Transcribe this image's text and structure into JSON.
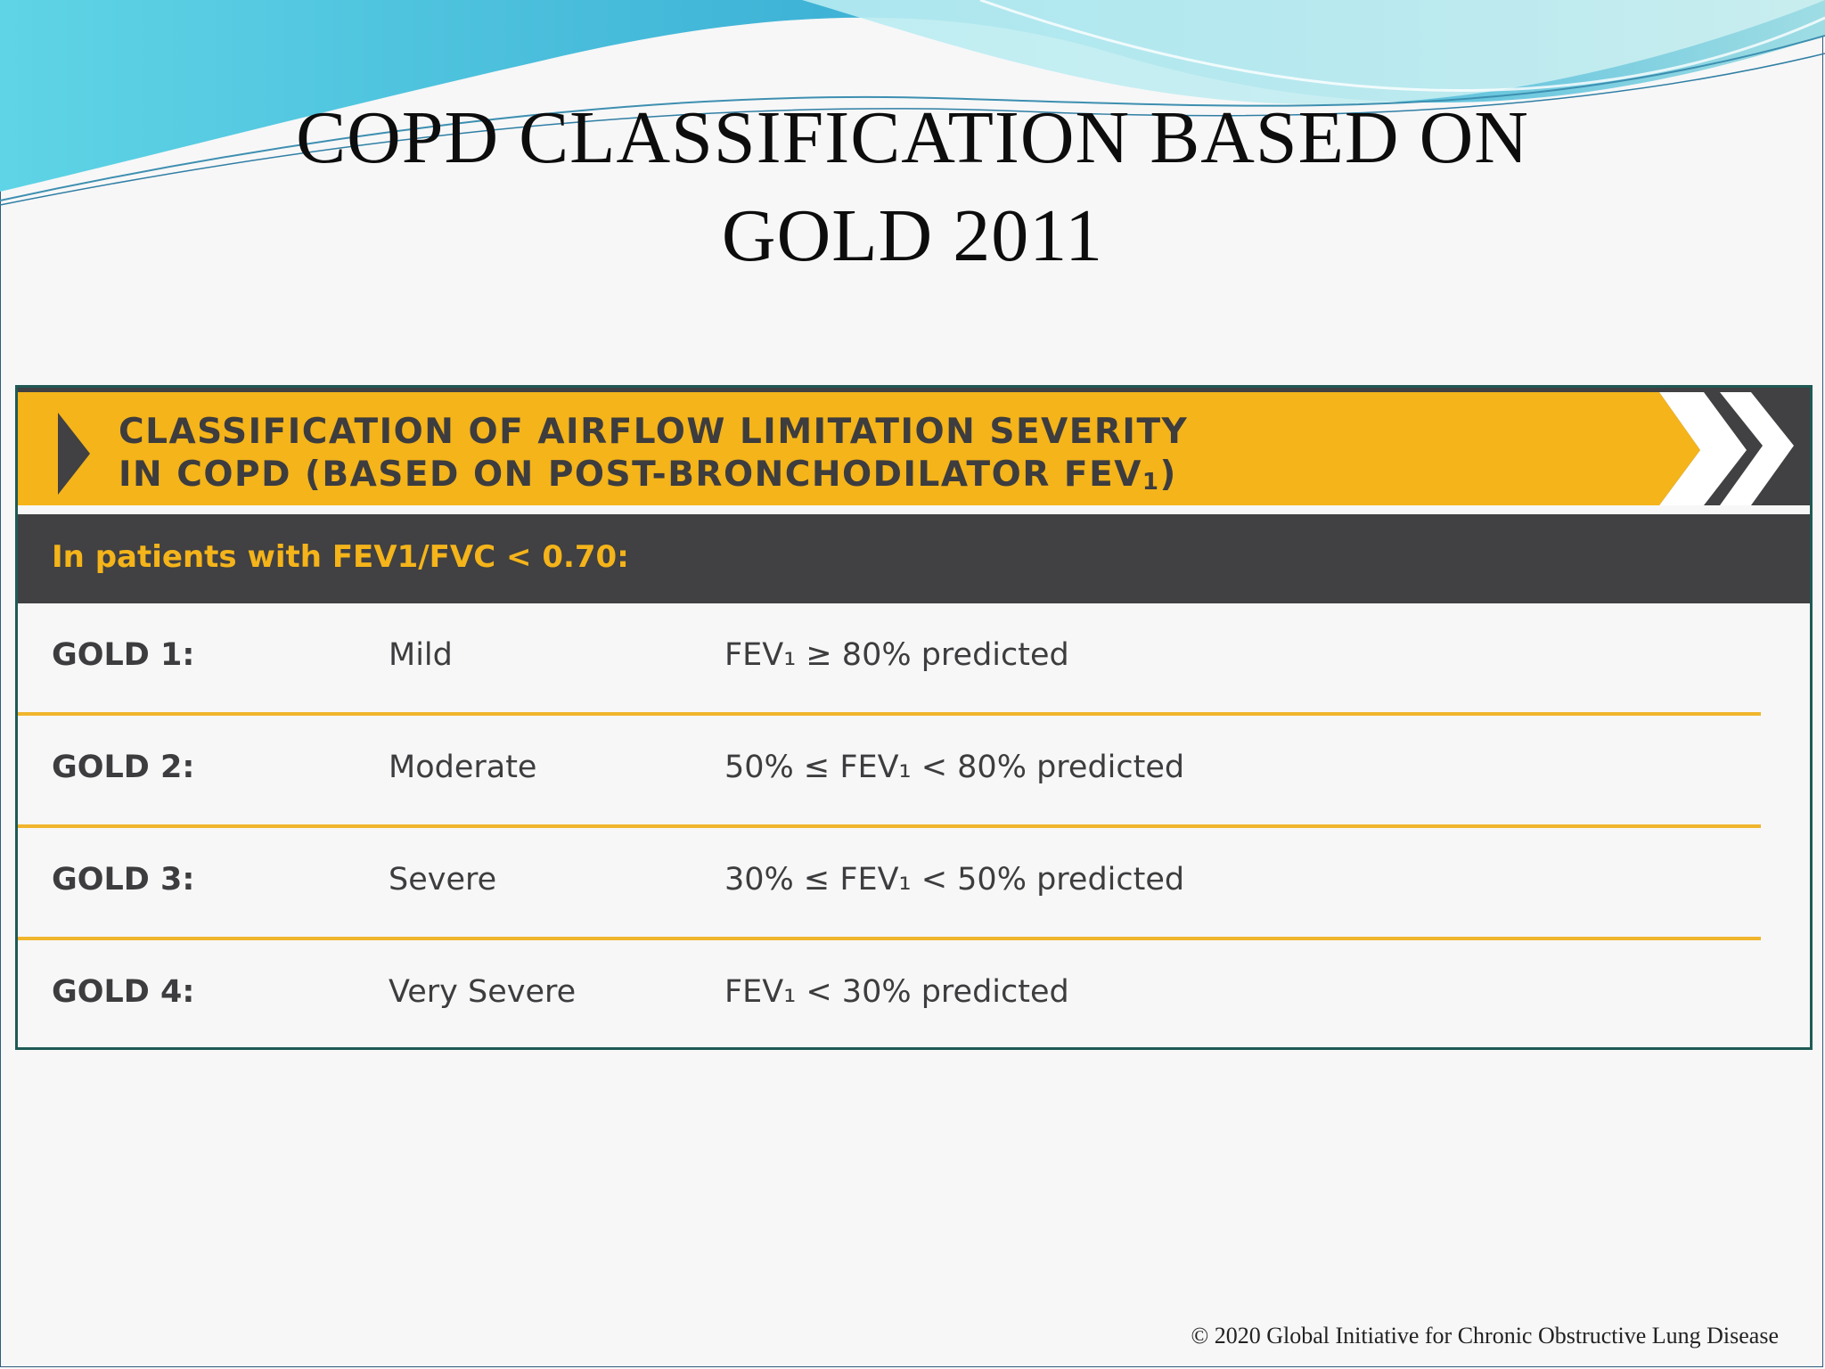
{
  "slide": {
    "title_line1": "COPD CLASSIFICATION BASED ON",
    "title_line2": "GOLD 2011",
    "footer": "© 2020 Global Initiative for Chronic Obstructive Lung Disease"
  },
  "classification": {
    "banner_line1": "CLASSIFICATION OF AIRFLOW LIMITATION SEVERITY",
    "banner_line2_text": "IN COPD (BASED ON POST-BRONCHODILATOR FEV",
    "banner_line2_sub": "1",
    "banner_line2_close": ")",
    "subheading": "In patients with FEV1/FVC < 0.70:",
    "rows": [
      {
        "grade": "GOLD 1:",
        "severity": "Mild",
        "criteria": "FEV₁ ≥ 80% predicted"
      },
      {
        "grade": "GOLD 2:",
        "severity": "Moderate",
        "criteria": "50% ≤ FEV₁ < 80% predicted"
      },
      {
        "grade": "GOLD 3:",
        "severity": "Severe",
        "criteria": "30% ≤ FEV₁ < 50% predicted"
      },
      {
        "grade": "GOLD 4:",
        "severity": "Very Severe",
        "criteria": "FEV₁ < 30% predicted"
      }
    ]
  },
  "colors": {
    "accent_yellow": "#f4b41a",
    "dark_gray": "#414042",
    "frame_teal": "#1f5a55",
    "divider": "#f0b52c"
  },
  "icons": {
    "banner_marker": "triangle-right-icon",
    "banner_chevron": "chevron-right-icon"
  }
}
